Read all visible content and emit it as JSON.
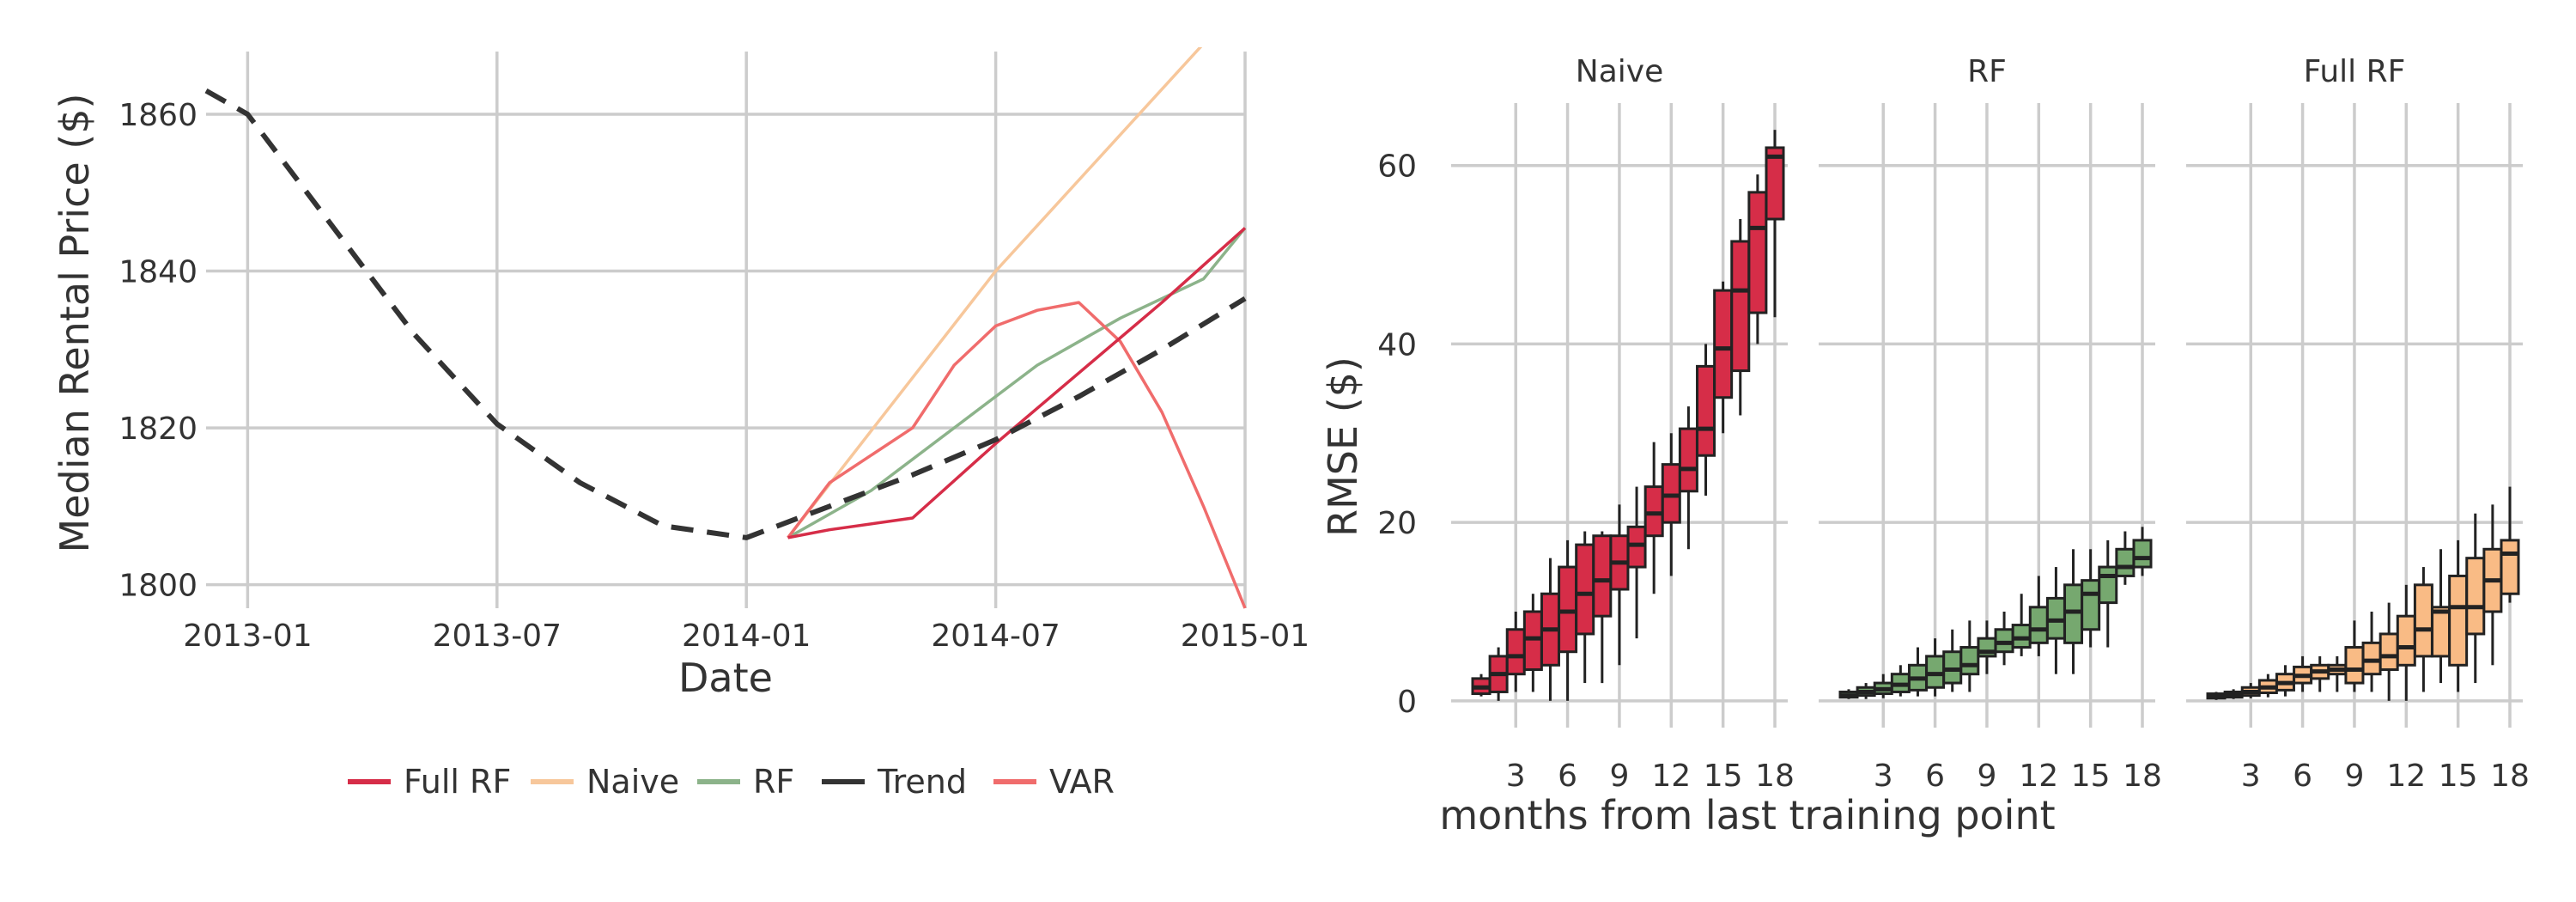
{
  "chart_data": [
    {
      "type": "line",
      "xlabel": "Date",
      "ylabel": "Median Rental Price ($)",
      "x_ticks": [
        "2013-01",
        "2013-07",
        "2014-01",
        "2014-07",
        "2015-01"
      ],
      "y_ticks": [
        1800,
        1820,
        1840,
        1860
      ],
      "ylim": [
        1797,
        1868
      ],
      "xlim": [
        "2012-12",
        "2015-01"
      ],
      "grid": true,
      "legend_position": "bottom",
      "series": [
        {
          "name": "Full RF",
          "color": "#d62d48",
          "style": "solid",
          "points": [
            [
              "2014-02",
              1806
            ],
            [
              "2014-03",
              1807
            ],
            [
              "2014-05",
              1808.5
            ],
            [
              "2014-07",
              1818
            ],
            [
              "2014-09",
              1827
            ],
            [
              "2014-11",
              1836
            ],
            [
              "2015-01",
              1845.5
            ]
          ]
        },
        {
          "name": "Naive",
          "color": "#f7c79b",
          "style": "solid",
          "points": [
            [
              "2014-02",
              1806
            ],
            [
              "2014-07",
              1840
            ],
            [
              "2014-12",
              1869
            ]
          ]
        },
        {
          "name": "RF",
          "color": "#8cb38a",
          "style": "solid",
          "points": [
            [
              "2014-02",
              1806
            ],
            [
              "2014-04",
              1812
            ],
            [
              "2014-06",
              1820
            ],
            [
              "2014-08",
              1828
            ],
            [
              "2014-10",
              1834
            ],
            [
              "2014-12",
              1839
            ],
            [
              "2015-01",
              1845.5
            ]
          ]
        },
        {
          "name": "Trend",
          "color": "#333333",
          "style": "dashed",
          "points": [
            [
              "2012-12",
              1863
            ],
            [
              "2013-01",
              1860
            ],
            [
              "2013-03",
              1846
            ],
            [
              "2013-05",
              1832
            ],
            [
              "2013-07",
              1820.5
            ],
            [
              "2013-09",
              1813
            ],
            [
              "2013-11",
              1807.5
            ],
            [
              "2014-01",
              1806
            ],
            [
              "2014-03",
              1810
            ],
            [
              "2014-05",
              1814
            ],
            [
              "2014-07",
              1818.5
            ],
            [
              "2014-09",
              1824
            ],
            [
              "2014-11",
              1830
            ],
            [
              "2015-01",
              1836.5
            ]
          ]
        },
        {
          "name": "VAR",
          "color": "#f06c6c",
          "style": "solid",
          "points": [
            [
              "2014-02",
              1806
            ],
            [
              "2014-03",
              1813
            ],
            [
              "2014-05",
              1820
            ],
            [
              "2014-06",
              1828
            ],
            [
              "2014-07",
              1833
            ],
            [
              "2014-08",
              1835
            ],
            [
              "2014-09",
              1836
            ],
            [
              "2014-10",
              1831
            ],
            [
              "2014-11",
              1822
            ],
            [
              "2014-12",
              1810
            ],
            [
              "2015-01",
              1797
            ]
          ]
        }
      ]
    },
    {
      "type": "box",
      "xlabel": "months from last training point",
      "ylabel": "RMSE ($)",
      "y_ticks": [
        0,
        20,
        40,
        60
      ],
      "ylim": [
        -3,
        67
      ],
      "x_ticks": [
        3,
        6,
        9,
        12,
        15,
        18
      ],
      "grid": true,
      "facets": [
        {
          "name": "Naive",
          "color": "#d62d48",
          "boxes": [
            {
              "x": 1,
              "min": 0.5,
              "q1": 0.8,
              "median": 1.5,
              "q3": 2.5,
              "max": 3
            },
            {
              "x": 2,
              "min": 0,
              "q1": 1,
              "median": 3,
              "q3": 5,
              "max": 6
            },
            {
              "x": 3,
              "min": 1,
              "q1": 3,
              "median": 5,
              "q3": 8,
              "max": 10
            },
            {
              "x": 4,
              "min": 1,
              "q1": 3.5,
              "median": 7,
              "q3": 10,
              "max": 12
            },
            {
              "x": 5,
              "min": 0,
              "q1": 4,
              "median": 8,
              "q3": 12,
              "max": 16
            },
            {
              "x": 6,
              "min": 0,
              "q1": 5.5,
              "median": 10,
              "q3": 15,
              "max": 18
            },
            {
              "x": 7,
              "min": 2,
              "q1": 7.5,
              "median": 12,
              "q3": 17.5,
              "max": 19
            },
            {
              "x": 8,
              "min": 2,
              "q1": 9.5,
              "median": 13.5,
              "q3": 18.5,
              "max": 19
            },
            {
              "x": 9,
              "min": 4,
              "q1": 12.5,
              "median": 15.5,
              "q3": 18.5,
              "max": 22
            },
            {
              "x": 10,
              "min": 7,
              "q1": 15,
              "median": 17.5,
              "q3": 19.5,
              "max": 24
            },
            {
              "x": 11,
              "min": 12,
              "q1": 18.5,
              "median": 21,
              "q3": 24,
              "max": 29
            },
            {
              "x": 12,
              "min": 14,
              "q1": 20,
              "median": 23,
              "q3": 26.5,
              "max": 30
            },
            {
              "x": 13,
              "min": 17,
              "q1": 23.5,
              "median": 26,
              "q3": 30.5,
              "max": 33
            },
            {
              "x": 14,
              "min": 23,
              "q1": 27.5,
              "median": 30.5,
              "q3": 37.5,
              "max": 40
            },
            {
              "x": 15,
              "min": 30,
              "q1": 34,
              "median": 39.5,
              "q3": 46,
              "max": 47
            },
            {
              "x": 16,
              "min": 32,
              "q1": 37,
              "median": 46,
              "q3": 51.5,
              "max": 54
            },
            {
              "x": 17,
              "min": 40,
              "q1": 43.5,
              "median": 53,
              "q3": 57,
              "max": 59
            },
            {
              "x": 18,
              "min": 43,
              "q1": 54,
              "median": 61,
              "q3": 62,
              "max": 64
            }
          ]
        },
        {
          "name": "RF",
          "color": "#76a86f",
          "boxes": [
            {
              "x": 1,
              "min": 0.2,
              "q1": 0.4,
              "median": 0.6,
              "q3": 1,
              "max": 1.3
            },
            {
              "x": 2,
              "min": 0.2,
              "q1": 0.6,
              "median": 1,
              "q3": 1.5,
              "max": 2
            },
            {
              "x": 3,
              "min": 0.3,
              "q1": 0.8,
              "median": 1.3,
              "q3": 2,
              "max": 3
            },
            {
              "x": 4,
              "min": 0.5,
              "q1": 1,
              "median": 1.8,
              "q3": 3,
              "max": 4
            },
            {
              "x": 5,
              "min": 0.5,
              "q1": 1.2,
              "median": 2.5,
              "q3": 4,
              "max": 6
            },
            {
              "x": 6,
              "min": 0.5,
              "q1": 1.5,
              "median": 3,
              "q3": 5,
              "max": 7
            },
            {
              "x": 7,
              "min": 1,
              "q1": 2,
              "median": 3.5,
              "q3": 5.5,
              "max": 8
            },
            {
              "x": 8,
              "min": 1,
              "q1": 3,
              "median": 4,
              "q3": 6,
              "max": 9
            },
            {
              "x": 9,
              "min": 3,
              "q1": 5,
              "median": 5.5,
              "q3": 7,
              "max": 9
            },
            {
              "x": 10,
              "min": 4,
              "q1": 5.5,
              "median": 6.5,
              "q3": 8,
              "max": 10
            },
            {
              "x": 11,
              "min": 5,
              "q1": 6,
              "median": 7,
              "q3": 8.5,
              "max": 12
            },
            {
              "x": 12,
              "min": 5,
              "q1": 6.5,
              "median": 8,
              "q3": 10.5,
              "max": 14
            },
            {
              "x": 13,
              "min": 3,
              "q1": 7,
              "median": 9,
              "q3": 11.5,
              "max": 15
            },
            {
              "x": 14,
              "min": 3,
              "q1": 6.5,
              "median": 10,
              "q3": 13,
              "max": 17
            },
            {
              "x": 15,
              "min": 6,
              "q1": 8,
              "median": 12,
              "q3": 13.5,
              "max": 17
            },
            {
              "x": 16,
              "min": 6,
              "q1": 11,
              "median": 14,
              "q3": 15,
              "max": 18
            },
            {
              "x": 17,
              "min": 13,
              "q1": 14,
              "median": 15,
              "q3": 17,
              "max": 19
            },
            {
              "x": 18,
              "min": 14,
              "q1": 15,
              "median": 16,
              "q3": 18,
              "max": 19.5
            }
          ]
        },
        {
          "name": "Full RF",
          "color": "#f9bb85",
          "boxes": [
            {
              "x": 1,
              "min": 0.1,
              "q1": 0.3,
              "median": 0.5,
              "q3": 0.8,
              "max": 1
            },
            {
              "x": 2,
              "min": 0.2,
              "q1": 0.4,
              "median": 0.7,
              "q3": 1,
              "max": 1.3
            },
            {
              "x": 3,
              "min": 0.3,
              "q1": 0.6,
              "median": 1,
              "q3": 1.5,
              "max": 2
            },
            {
              "x": 4,
              "min": 0.4,
              "q1": 0.9,
              "median": 1.5,
              "q3": 2.3,
              "max": 3
            },
            {
              "x": 5,
              "min": 0.5,
              "q1": 1.2,
              "median": 2,
              "q3": 3,
              "max": 4
            },
            {
              "x": 6,
              "min": 1,
              "q1": 2,
              "median": 2.8,
              "q3": 3.8,
              "max": 5
            },
            {
              "x": 7,
              "min": 1,
              "q1": 2.5,
              "median": 3.3,
              "q3": 4,
              "max": 5
            },
            {
              "x": 8,
              "min": 1,
              "q1": 3,
              "median": 3.5,
              "q3": 4,
              "max": 5
            },
            {
              "x": 9,
              "min": 1,
              "q1": 2,
              "median": 3.5,
              "q3": 6,
              "max": 9
            },
            {
              "x": 10,
              "min": 1,
              "q1": 3,
              "median": 4.5,
              "q3": 6.5,
              "max": 10
            },
            {
              "x": 11,
              "min": 0,
              "q1": 3.5,
              "median": 5,
              "q3": 7.5,
              "max": 11
            },
            {
              "x": 12,
              "min": 0,
              "q1": 4,
              "median": 6,
              "q3": 9.5,
              "max": 13
            },
            {
              "x": 13,
              "min": 1,
              "q1": 5,
              "median": 8,
              "q3": 13,
              "max": 15
            },
            {
              "x": 14,
              "min": 2,
              "q1": 5,
              "median": 10,
              "q3": 10.5,
              "max": 17
            },
            {
              "x": 15,
              "min": 1,
              "q1": 4,
              "median": 10.5,
              "q3": 14,
              "max": 18
            },
            {
              "x": 16,
              "min": 2,
              "q1": 7.5,
              "median": 10.5,
              "q3": 16,
              "max": 21
            },
            {
              "x": 17,
              "min": 4,
              "q1": 10,
              "median": 13.5,
              "q3": 17,
              "max": 22
            },
            {
              "x": 18,
              "min": 11,
              "q1": 12,
              "median": 16.5,
              "q3": 18,
              "max": 24
            }
          ]
        }
      ]
    }
  ]
}
